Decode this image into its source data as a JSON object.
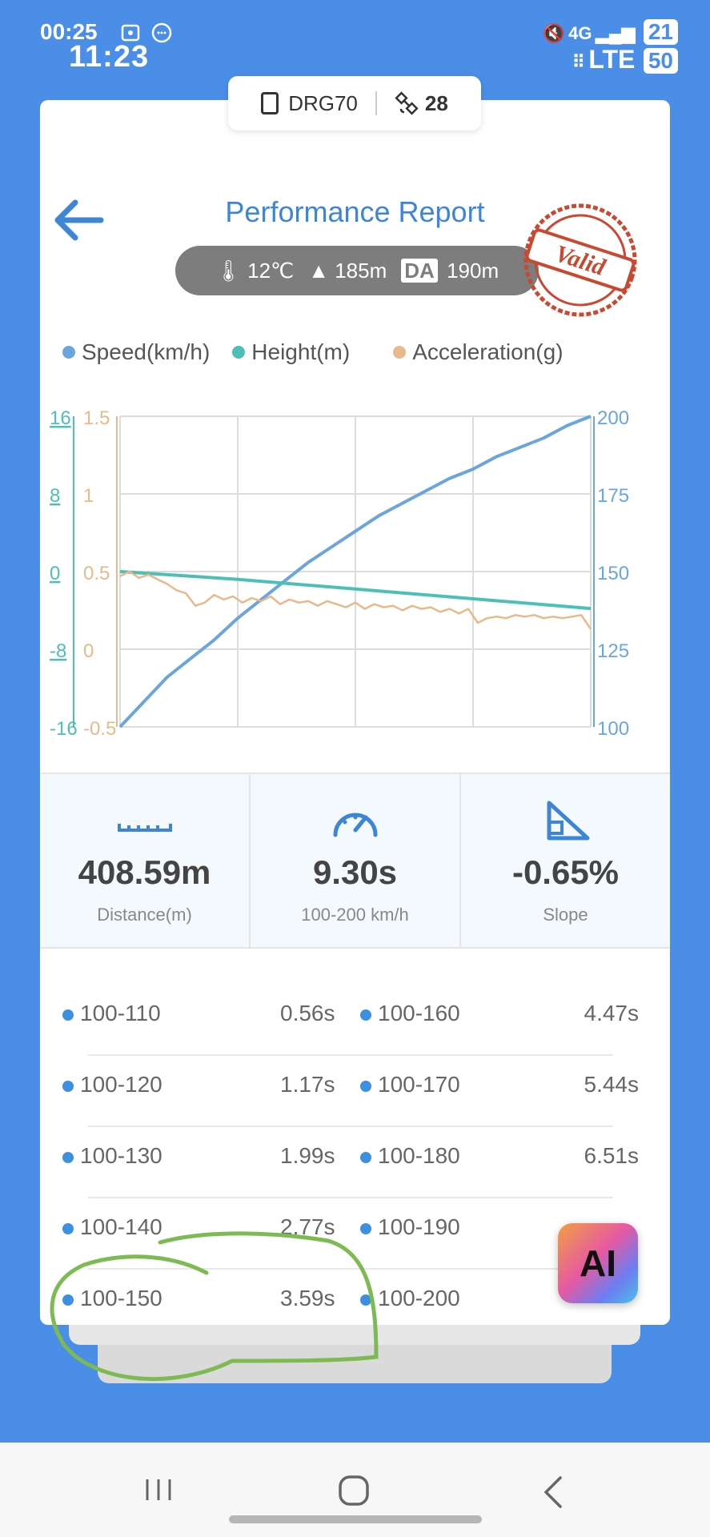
{
  "status_bar": {
    "time_small": "00:25",
    "time_large": "11:23",
    "signal_text": "4G",
    "network": "LTE",
    "battery_top": "21",
    "battery": "50"
  },
  "device": {
    "name": "DRG70",
    "satellites": "28",
    "device_icon": "phone-icon",
    "satellite_icon": "satellite-icon"
  },
  "header": {
    "title": "Performance Report",
    "back_icon": "arrow-left-icon"
  },
  "conditions": {
    "temperature": "12℃",
    "altitude": "185m",
    "da_label": "DA",
    "density_altitude": "190m"
  },
  "stamp": {
    "text": "Valid",
    "color": "#c8492f"
  },
  "chart_data": {
    "type": "line",
    "legend": [
      "Speed(km/h)",
      "Height(m)",
      "Acceleration(g)"
    ],
    "colors": {
      "speed": "#6aa6dc",
      "height": "#4dbfb6",
      "acceleration": "#e8b98a"
    },
    "height_ticks": [
      "16",
      "8",
      "0",
      "-8",
      "-16"
    ],
    "accel_ticks": [
      "1.5",
      "1",
      "0.5",
      "0",
      "-0.5"
    ],
    "speed_ticks": [
      "200",
      "175",
      "150",
      "125",
      "100"
    ],
    "ylim_height": [
      -16,
      16
    ],
    "ylim_accel": [
      -0.5,
      1.5
    ],
    "ylim_speed": [
      100,
      200
    ],
    "xlim": [
      0,
      1
    ],
    "grid": true,
    "series": [
      {
        "name": "Speed(km/h)",
        "axis": "speed",
        "x": [
          0,
          0.05,
          0.1,
          0.15,
          0.2,
          0.25,
          0.3,
          0.35,
          0.4,
          0.45,
          0.5,
          0.55,
          0.6,
          0.65,
          0.7,
          0.75,
          0.8,
          0.85,
          0.9,
          0.95,
          1.0
        ],
        "values": [
          100,
          108,
          116,
          122,
          128,
          135,
          141,
          147,
          153,
          158,
          163,
          168,
          172,
          176,
          180,
          183,
          187,
          190,
          193,
          197,
          200
        ]
      },
      {
        "name": "Height(m)",
        "axis": "height",
        "x": [
          0,
          0.25,
          0.5,
          0.75,
          1.0
        ],
        "values": [
          0,
          -0.8,
          -1.8,
          -2.8,
          -3.8
        ]
      },
      {
        "name": "Acceleration(g)",
        "axis": "accel",
        "x": [
          0,
          0.02,
          0.04,
          0.06,
          0.08,
          0.1,
          0.12,
          0.14,
          0.16,
          0.18,
          0.2,
          0.22,
          0.24,
          0.26,
          0.28,
          0.3,
          0.32,
          0.34,
          0.36,
          0.38,
          0.4,
          0.42,
          0.44,
          0.46,
          0.48,
          0.5,
          0.52,
          0.54,
          0.56,
          0.58,
          0.6,
          0.62,
          0.64,
          0.66,
          0.68,
          0.7,
          0.72,
          0.74,
          0.76,
          0.78,
          0.8,
          0.82,
          0.84,
          0.86,
          0.88,
          0.9,
          0.92,
          0.94,
          0.96,
          0.98,
          1.0
        ],
        "values": [
          0.47,
          0.5,
          0.46,
          0.48,
          0.45,
          0.42,
          0.38,
          0.36,
          0.28,
          0.3,
          0.35,
          0.32,
          0.34,
          0.3,
          0.33,
          0.31,
          0.34,
          0.29,
          0.32,
          0.3,
          0.31,
          0.28,
          0.31,
          0.29,
          0.27,
          0.3,
          0.26,
          0.29,
          0.27,
          0.28,
          0.25,
          0.28,
          0.26,
          0.27,
          0.24,
          0.26,
          0.23,
          0.26,
          0.17,
          0.2,
          0.21,
          0.2,
          0.22,
          0.21,
          0.22,
          0.2,
          0.21,
          0.2,
          0.21,
          0.22,
          0.13
        ]
      }
    ]
  },
  "stats": [
    {
      "icon": "ruler-icon",
      "value": "408.59m",
      "label": "Distance(m)"
    },
    {
      "icon": "speedometer-icon",
      "value": "9.30s",
      "label": "100-200 km/h"
    },
    {
      "icon": "slope-icon",
      "value": "-0.65%",
      "label": "Slope"
    }
  ],
  "splits": [
    {
      "left_range": "100-110",
      "left_time": "0.56s",
      "right_range": "100-160",
      "right_time": "4.47s"
    },
    {
      "left_range": "100-120",
      "left_time": "1.17s",
      "right_range": "100-170",
      "right_time": "5.44s"
    },
    {
      "left_range": "100-130",
      "left_time": "1.99s",
      "right_range": "100-180",
      "right_time": "6.51s"
    },
    {
      "left_range": "100-140",
      "left_time": "2.77s",
      "right_range": "100-190",
      "right_time": ""
    },
    {
      "left_range": "100-150",
      "left_time": "3.59s",
      "right_range": "100-200",
      "right_time": ""
    }
  ],
  "ai_button": {
    "label": "AI",
    "icon": "car-icon"
  },
  "nav": {
    "recent_icon": "recent-apps-icon",
    "home_icon": "home-icon",
    "back_icon": "nav-back-icon"
  },
  "annotation": {
    "shape": "hand-drawn-circle",
    "color": "#7dbb52"
  }
}
